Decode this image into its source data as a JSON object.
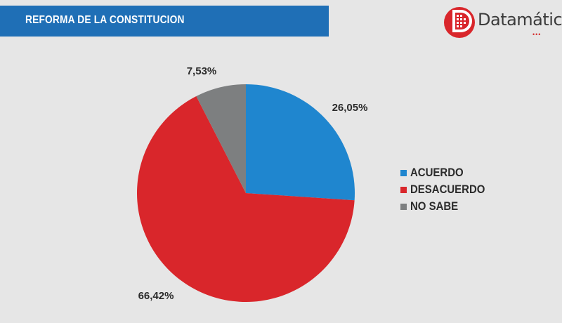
{
  "header": {
    "title": "REFORMA DE LA CONSTITUCION"
  },
  "logo": {
    "text": "Datamática",
    "dots": "•••",
    "icon": "datamatica-logo-icon"
  },
  "colors": {
    "header_bar": "#1f6fb6",
    "background": "#e6e6e6",
    "acuerdo": "#1f86cf",
    "desacuerdo": "#d9262b",
    "no_sabe": "#7d7f80"
  },
  "chart_data": {
    "type": "pie",
    "title": "REFORMA DE LA CONSTITUCION",
    "categories": [
      "ACUERDO",
      "DESACUERDO",
      "NO SABE"
    ],
    "values": [
      26.05,
      66.42,
      7.53
    ],
    "data_labels": [
      "26,05%",
      "66,42%",
      "7,53%"
    ],
    "colors": [
      "#1f86cf",
      "#d9262b",
      "#7d7f80"
    ],
    "start_angle_deg": 0,
    "direction": "clockwise",
    "legend_position": "right"
  }
}
